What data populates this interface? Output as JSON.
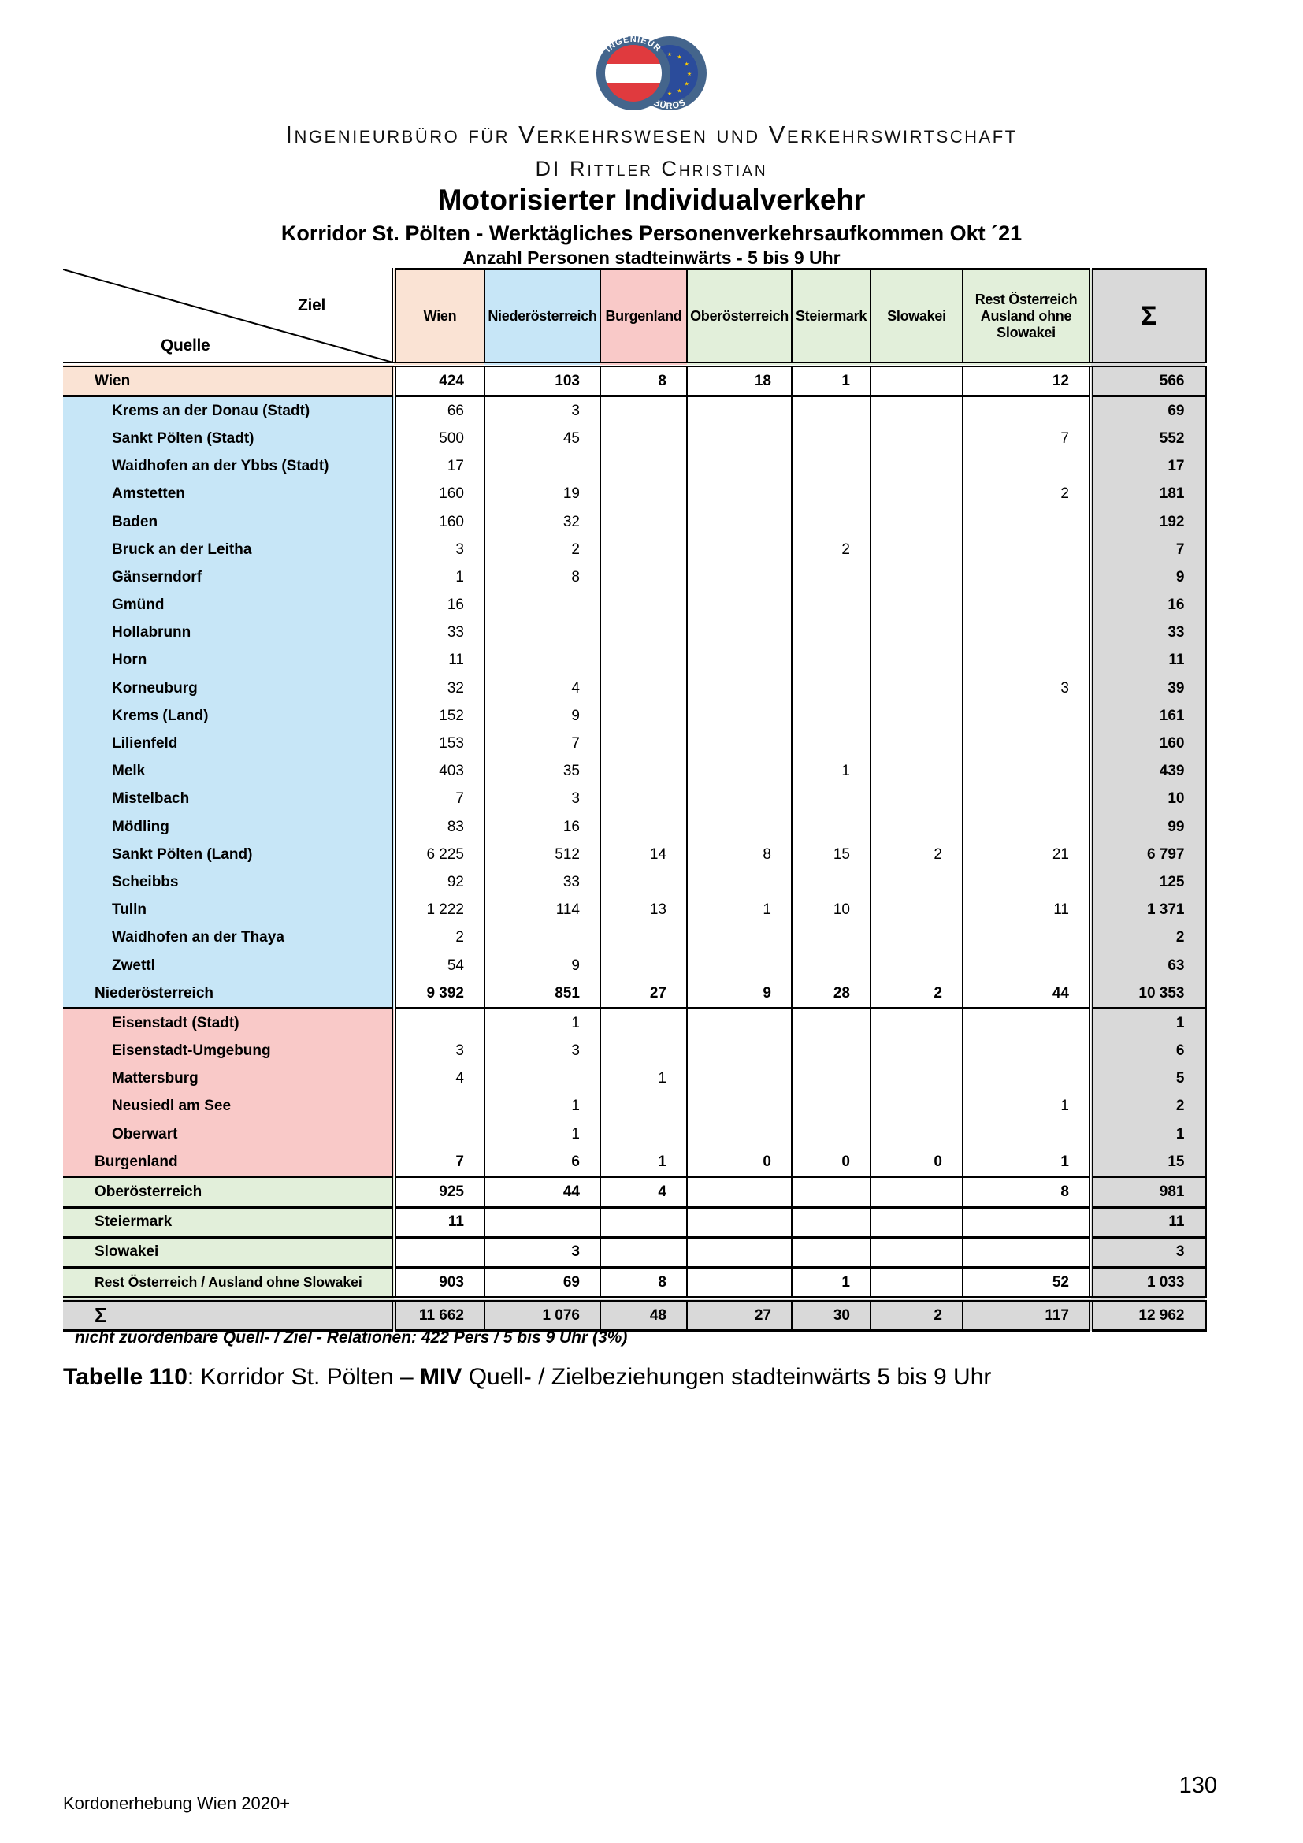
{
  "logo": {
    "left_badge_text": "INGENIEUR",
    "right_badge_text": "BÜROS",
    "ring_color": "#44658C",
    "eu_blue": "#2B4C9B",
    "star_color": "#FFCC00",
    "flag_red": "#E03A3E"
  },
  "header": {
    "company_line1": "Ingenieurbüro für Verkehrswesen und Verkehrswirtschaft",
    "company_line2": "DI Rittler Christian"
  },
  "titles": {
    "main": "Motorisierter Individualverkehr",
    "sub1": "Korridor St. Pölten - Werktägliches Personenverkehrsaufkommen Okt ´21",
    "sub2": "Anzahl Personen stadteinwärts - 5 bis 9 Uhr"
  },
  "table": {
    "corner": {
      "ziel": "Ziel",
      "quelle": "Quelle"
    },
    "columns": [
      {
        "key": "wien",
        "label": "Wien",
        "class": "c-wien"
      },
      {
        "key": "niederoesterreich",
        "label": "Niederösterreich",
        "class": "c-noe"
      },
      {
        "key": "burgenland",
        "label": "Burgenland",
        "class": "c-bgl"
      },
      {
        "key": "oberoesterreich",
        "label": "Oberösterreich",
        "class": "c-green"
      },
      {
        "key": "steiermark",
        "label": "Steiermark",
        "class": "c-green"
      },
      {
        "key": "slowakei",
        "label": "Slowakei",
        "class": "c-green"
      },
      {
        "key": "rest-oesterreich",
        "label": "Rest Österreich\nAusland ohne\nSlowakei",
        "class": "c-green"
      },
      {
        "key": "sigma",
        "label": "Σ",
        "class": "c-sigma"
      }
    ],
    "rows": [
      {
        "label": "Wien",
        "type": "wien",
        "values": [
          "424",
          "103",
          "8",
          "18",
          "1",
          "",
          "12",
          "566"
        ]
      },
      {
        "label": "Krems an der Donau (Stadt)",
        "type": "noe",
        "values": [
          "66",
          "3",
          "",
          "",
          "",
          "",
          "",
          "69"
        ]
      },
      {
        "label": "Sankt Pölten (Stadt)",
        "type": "noe",
        "values": [
          "500",
          "45",
          "",
          "",
          "",
          "",
          "7",
          "552"
        ]
      },
      {
        "label": "Waidhofen an der Ybbs (Stadt)",
        "type": "noe",
        "values": [
          "17",
          "",
          "",
          "",
          "",
          "",
          "",
          "17"
        ]
      },
      {
        "label": "Amstetten",
        "type": "noe",
        "values": [
          "160",
          "19",
          "",
          "",
          "",
          "",
          "2",
          "181"
        ]
      },
      {
        "label": "Baden",
        "type": "noe",
        "values": [
          "160",
          "32",
          "",
          "",
          "",
          "",
          "",
          "192"
        ]
      },
      {
        "label": "Bruck an der Leitha",
        "type": "noe",
        "values": [
          "3",
          "2",
          "",
          "",
          "2",
          "",
          "",
          "7"
        ]
      },
      {
        "label": "Gänserndorf",
        "type": "noe",
        "values": [
          "1",
          "8",
          "",
          "",
          "",
          "",
          "",
          "9"
        ]
      },
      {
        "label": "Gmünd",
        "type": "noe",
        "values": [
          "16",
          "",
          "",
          "",
          "",
          "",
          "",
          "16"
        ]
      },
      {
        "label": "Hollabrunn",
        "type": "noe",
        "values": [
          "33",
          "",
          "",
          "",
          "",
          "",
          "",
          "33"
        ]
      },
      {
        "label": "Horn",
        "type": "noe",
        "values": [
          "11",
          "",
          "",
          "",
          "",
          "",
          "",
          "11"
        ]
      },
      {
        "label": "Korneuburg",
        "type": "noe",
        "values": [
          "32",
          "4",
          "",
          "",
          "",
          "",
          "3",
          "39"
        ]
      },
      {
        "label": "Krems (Land)",
        "type": "noe",
        "values": [
          "152",
          "9",
          "",
          "",
          "",
          "",
          "",
          "161"
        ]
      },
      {
        "label": "Lilienfeld",
        "type": "noe",
        "values": [
          "153",
          "7",
          "",
          "",
          "",
          "",
          "",
          "160"
        ]
      },
      {
        "label": "Melk",
        "type": "noe",
        "values": [
          "403",
          "35",
          "",
          "",
          "1",
          "",
          "",
          "439"
        ]
      },
      {
        "label": "Mistelbach",
        "type": "noe",
        "values": [
          "7",
          "3",
          "",
          "",
          "",
          "",
          "",
          "10"
        ]
      },
      {
        "label": "Mödling",
        "type": "noe",
        "values": [
          "83",
          "16",
          "",
          "",
          "",
          "",
          "",
          "99"
        ]
      },
      {
        "label": "Sankt Pölten (Land)",
        "type": "noe",
        "values": [
          "6 225",
          "512",
          "14",
          "8",
          "15",
          "2",
          "21",
          "6 797"
        ]
      },
      {
        "label": "Scheibbs",
        "type": "noe",
        "values": [
          "92",
          "33",
          "",
          "",
          "",
          "",
          "",
          "125"
        ]
      },
      {
        "label": "Tulln",
        "type": "noe",
        "values": [
          "1 222",
          "114",
          "13",
          "1",
          "10",
          "",
          "11",
          "1 371"
        ]
      },
      {
        "label": "Waidhofen an der Thaya",
        "type": "noe",
        "values": [
          "2",
          "",
          "",
          "",
          "",
          "",
          "",
          "2"
        ]
      },
      {
        "label": "Zwettl",
        "type": "noe",
        "values": [
          "54",
          "9",
          "",
          "",
          "",
          "",
          "",
          "63"
        ]
      },
      {
        "label": "Niederösterreich",
        "type": "noeTotal",
        "values": [
          "9 392",
          "851",
          "27",
          "9",
          "28",
          "2",
          "44",
          "10 353"
        ]
      },
      {
        "label": "Eisenstadt (Stadt)",
        "type": "bgl",
        "values": [
          "",
          "1",
          "",
          "",
          "",
          "",
          "",
          "1"
        ]
      },
      {
        "label": "Eisenstadt-Umgebung",
        "type": "bgl",
        "values": [
          "3",
          "3",
          "",
          "",
          "",
          "",
          "",
          "6"
        ]
      },
      {
        "label": "Mattersburg",
        "type": "bgl",
        "values": [
          "4",
          "",
          "1",
          "",
          "",
          "",
          "",
          "5"
        ]
      },
      {
        "label": "Neusiedl am See",
        "type": "bgl",
        "values": [
          "",
          "1",
          "",
          "",
          "",
          "",
          "1",
          "2"
        ]
      },
      {
        "label": "Oberwart",
        "type": "bgl",
        "values": [
          "",
          "1",
          "",
          "",
          "",
          "",
          "",
          "1"
        ]
      },
      {
        "label": "Burgenland",
        "type": "bglTotal",
        "values": [
          "7",
          "6",
          "1",
          "0",
          "0",
          "0",
          "1",
          "15"
        ]
      },
      {
        "label": "Oberösterreich",
        "type": "green",
        "values": [
          "925",
          "44",
          "4",
          "",
          "",
          "",
          "8",
          "981"
        ]
      },
      {
        "label": "Steiermark",
        "type": "green",
        "values": [
          "11",
          "",
          "",
          "",
          "",
          "",
          "",
          "11"
        ]
      },
      {
        "label": "Slowakei",
        "type": "green",
        "values": [
          "",
          "3",
          "",
          "",
          "",
          "",
          "",
          "3"
        ]
      },
      {
        "label": "Rest Österreich / Ausland ohne Slowakei",
        "type": "greenLast",
        "values": [
          "903",
          "69",
          "8",
          "",
          "1",
          "",
          "52",
          "1 033"
        ]
      },
      {
        "label": "Σ",
        "type": "sum",
        "values": [
          "11 662",
          "1 076",
          "48",
          "27",
          "30",
          "2",
          "117",
          "12 962"
        ]
      }
    ]
  },
  "note": {
    "text": "nicht zuordenbare Quell- / Ziel - Relationen: 422 Pers / 5 bis 9 Uhr (3%)"
  },
  "caption": {
    "label": "Tabelle 110",
    "rest1": ": Korridor St. Pölten – ",
    "bold": "MIV",
    "rest2": " Quell- / Zielbeziehungen stadteinwärts 5 bis 9 Uhr"
  },
  "footer": {
    "source": "Kordonerhebung Wien 2020+",
    "page": "130"
  }
}
